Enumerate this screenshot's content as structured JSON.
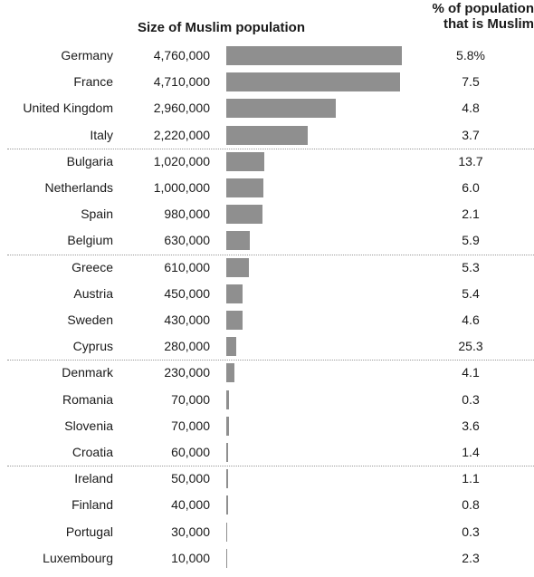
{
  "chart_data": {
    "type": "bar",
    "orientation": "horizontal",
    "column_headers": {
      "size": "Size of Muslim population",
      "percent": [
        "% of population",
        "that is Muslim"
      ]
    },
    "rows": [
      {
        "country": "Germany",
        "count_label": "4,760,000",
        "value": 4760000,
        "pct_label": "5.8%"
      },
      {
        "country": "France",
        "count_label": "4,710,000",
        "value": 4710000,
        "pct_label": "7.5"
      },
      {
        "country": "United Kingdom",
        "count_label": "2,960,000",
        "value": 2960000,
        "pct_label": "4.8"
      },
      {
        "country": "Italy",
        "count_label": "2,220,000",
        "value": 2220000,
        "pct_label": "3.7"
      },
      {
        "country": "Bulgaria",
        "count_label": "1,020,000",
        "value": 1020000,
        "pct_label": "13.7"
      },
      {
        "country": "Netherlands",
        "count_label": "1,000,000",
        "value": 1000000,
        "pct_label": "6.0"
      },
      {
        "country": "Spain",
        "count_label": "980,000",
        "value": 980000,
        "pct_label": "2.1"
      },
      {
        "country": "Belgium",
        "count_label": "630,000",
        "value": 630000,
        "pct_label": "5.9"
      },
      {
        "country": "Greece",
        "count_label": "610,000",
        "value": 610000,
        "pct_label": "5.3"
      },
      {
        "country": "Austria",
        "count_label": "450,000",
        "value": 450000,
        "pct_label": "5.4"
      },
      {
        "country": "Sweden",
        "count_label": "430,000",
        "value": 430000,
        "pct_label": "4.6"
      },
      {
        "country": "Cyprus",
        "count_label": "280,000",
        "value": 280000,
        "pct_label": "25.3"
      },
      {
        "country": "Denmark",
        "count_label": "230,000",
        "value": 230000,
        "pct_label": "4.1"
      },
      {
        "country": "Romania",
        "count_label": "70,000",
        "value": 70000,
        "pct_label": "0.3"
      },
      {
        "country": "Slovenia",
        "count_label": "70,000",
        "value": 70000,
        "pct_label": "3.6"
      },
      {
        "country": "Croatia",
        "count_label": "60,000",
        "value": 60000,
        "pct_label": "1.4"
      },
      {
        "country": "Ireland",
        "count_label": "50,000",
        "value": 50000,
        "pct_label": "1.1"
      },
      {
        "country": "Finland",
        "count_label": "40,000",
        "value": 40000,
        "pct_label": "0.8"
      },
      {
        "country": "Portugal",
        "count_label": "30,000",
        "value": 30000,
        "pct_label": "0.3"
      },
      {
        "country": "Luxembourg",
        "count_label": "10,000",
        "value": 10000,
        "pct_label": "2.3"
      }
    ],
    "group_size": 4,
    "bar_color": "#8f8f8f",
    "grid": false,
    "legend": "none"
  }
}
